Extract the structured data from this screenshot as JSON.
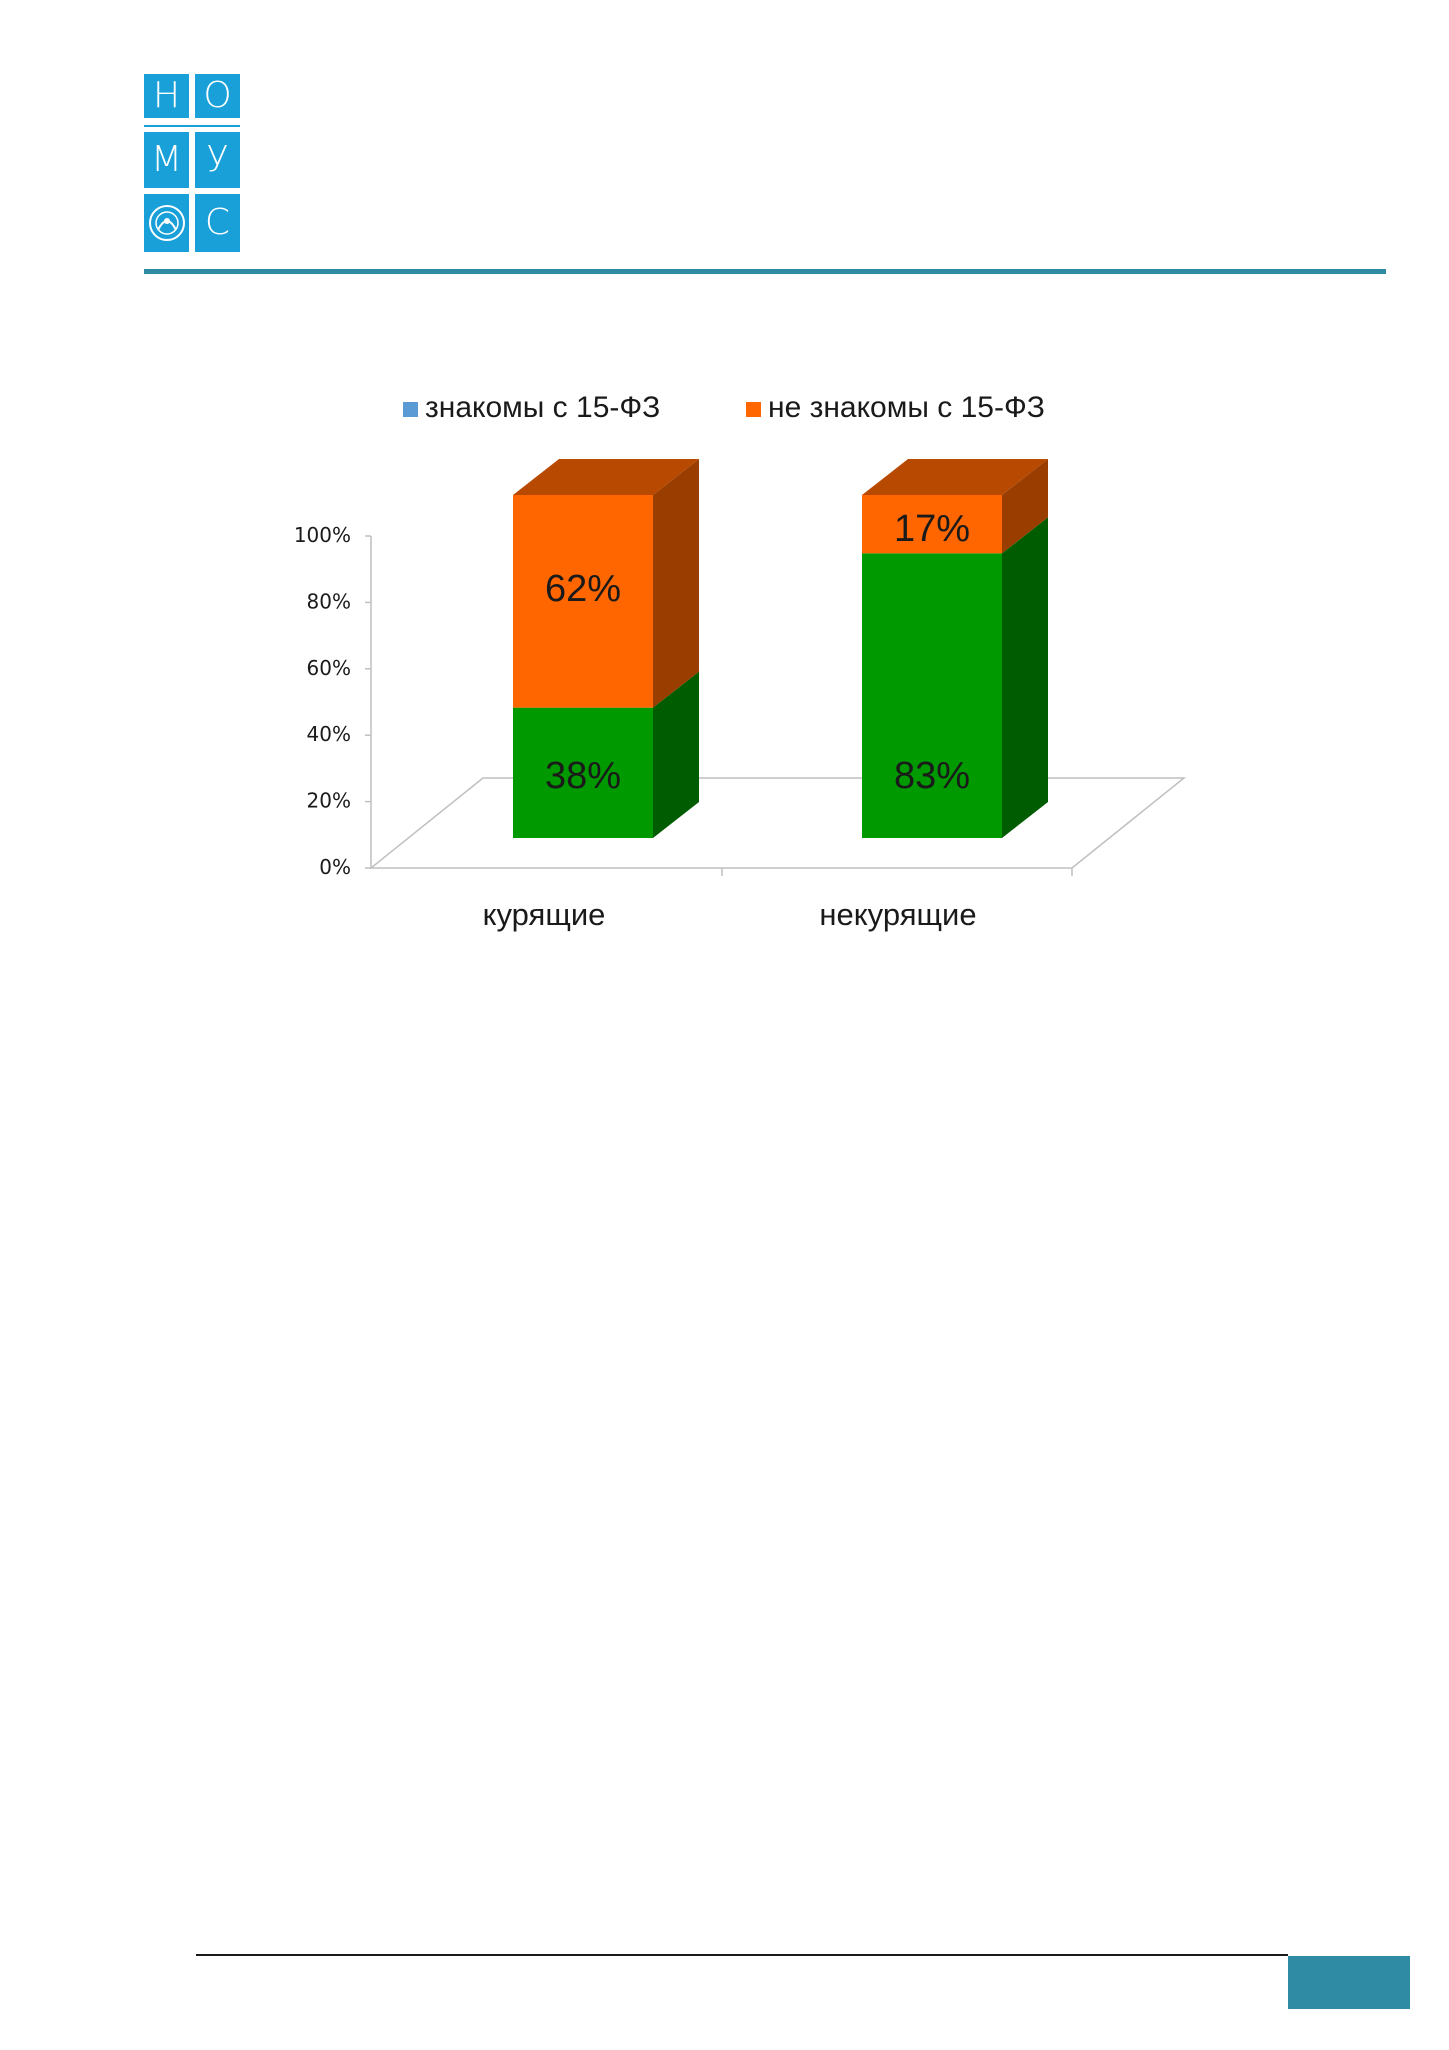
{
  "logo": {
    "letters": [
      "Н",
      "О",
      "М",
      "У",
      "С"
    ],
    "emblem_icon": "emblem-icon"
  },
  "colors": {
    "brand": "#1aa0d8",
    "rule": "#2f8aa3",
    "series_known": "#009900",
    "series_unknown": "#ff6600",
    "legend_known": "#5b9bd5"
  },
  "chart_data": {
    "type": "bar",
    "stacked": true,
    "three_d": true,
    "categories": [
      "курящие",
      "некурящие"
    ],
    "series": [
      {
        "name": "знакомы с 15-ФЗ",
        "values": [
          38,
          83
        ],
        "labels": [
          "38%",
          "83%"
        ]
      },
      {
        "name": "не знакомы с 15-ФЗ",
        "values": [
          62,
          17
        ],
        "labels": [
          "62%",
          "17%"
        ]
      }
    ],
    "yticks": [
      "0%",
      "20%",
      "40%",
      "60%",
      "80%",
      "100%"
    ],
    "ylim": [
      0,
      100
    ],
    "legend_position": "top",
    "grid": false
  }
}
